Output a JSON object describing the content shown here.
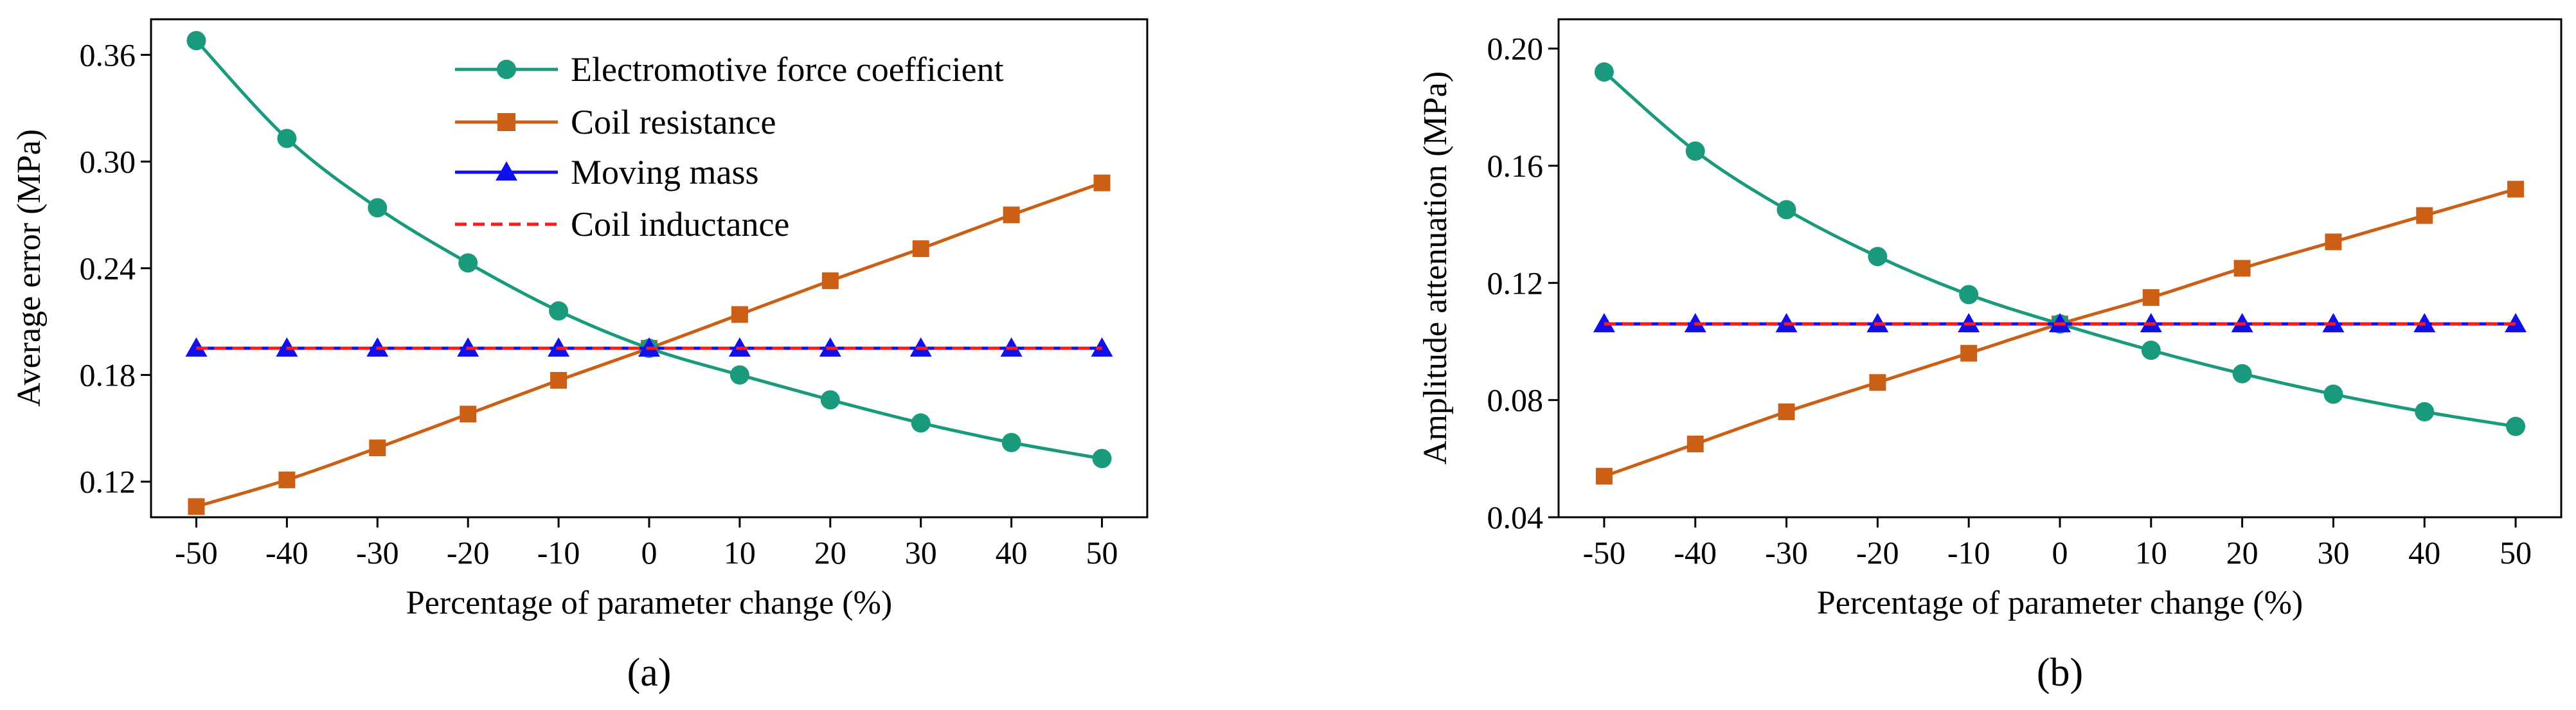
{
  "figure": {
    "panel_labels": [
      "(a)",
      "(b)"
    ]
  },
  "chart_data": [
    {
      "type": "line",
      "panel": "(a)",
      "xlabel": "Percentage of parameter change (%)",
      "ylabel": "Average error (MPa)",
      "xlim": [
        -55,
        55
      ],
      "ylim": [
        0.1,
        0.38
      ],
      "x": [
        -50,
        -40,
        -30,
        -20,
        -10,
        0,
        10,
        20,
        30,
        40,
        50
      ],
      "xticks": [
        -50,
        -40,
        -30,
        -20,
        -10,
        0,
        10,
        20,
        30,
        40,
        50
      ],
      "yticks": [
        0.12,
        0.18,
        0.24,
        0.3,
        0.36
      ],
      "ytick_labels": [
        "0.12",
        "0.18",
        "0.24",
        "0.30",
        "0.36"
      ],
      "grid": false,
      "legend_position": "top-right",
      "series": [
        {
          "name": "Electromotive force coefficient",
          "color": "#1a9a7c",
          "marker": "circle",
          "dash": "solid",
          "values": [
            0.368,
            0.313,
            0.274,
            0.243,
            0.216,
            0.195,
            0.18,
            0.166,
            0.153,
            0.142,
            0.133
          ]
        },
        {
          "name": "Coil resistance",
          "color": "#cc5f16",
          "marker": "square",
          "dash": "solid",
          "values": [
            0.106,
            0.121,
            0.139,
            0.158,
            0.177,
            0.195,
            0.214,
            0.233,
            0.251,
            0.27,
            0.288
          ]
        },
        {
          "name": "Moving mass",
          "color": "#1010ee",
          "marker": "triangle",
          "dash": "solid",
          "values": [
            0.195,
            0.195,
            0.195,
            0.195,
            0.195,
            0.195,
            0.195,
            0.195,
            0.195,
            0.195,
            0.195
          ]
        },
        {
          "name": "Coil inductance",
          "color": "#ff1a1a",
          "marker": "none",
          "dash": "dashed",
          "values": [
            0.195,
            0.195,
            0.195,
            0.195,
            0.195,
            0.195,
            0.195,
            0.195,
            0.195,
            0.195,
            0.195
          ]
        }
      ]
    },
    {
      "type": "line",
      "panel": "(b)",
      "xlabel": "Percentage of parameter change (%)",
      "ylabel": "Amplitude attenuation (MPa)",
      "xlim": [
        -55,
        55
      ],
      "ylim": [
        0.04,
        0.21
      ],
      "x": [
        -50,
        -40,
        -30,
        -20,
        -10,
        0,
        10,
        20,
        30,
        40,
        50
      ],
      "xticks": [
        -50,
        -40,
        -30,
        -20,
        -10,
        0,
        10,
        20,
        30,
        40,
        50
      ],
      "yticks": [
        0.04,
        0.08,
        0.12,
        0.16,
        0.2
      ],
      "ytick_labels": [
        "0.04",
        "0.08",
        "0.12",
        "0.16",
        "0.20"
      ],
      "grid": false,
      "legend_position": "none",
      "series": [
        {
          "name": "Electromotive force coefficient",
          "color": "#1a9a7c",
          "marker": "circle",
          "dash": "solid",
          "values": [
            0.192,
            0.165,
            0.145,
            0.129,
            0.116,
            0.106,
            0.097,
            0.089,
            0.082,
            0.076,
            0.071
          ]
        },
        {
          "name": "Coil resistance",
          "color": "#cc5f16",
          "marker": "square",
          "dash": "solid",
          "values": [
            0.054,
            0.065,
            0.076,
            0.086,
            0.096,
            0.106,
            0.115,
            0.125,
            0.134,
            0.143,
            0.152
          ]
        },
        {
          "name": "Moving mass",
          "color": "#1010ee",
          "marker": "triangle",
          "dash": "solid",
          "values": [
            0.106,
            0.106,
            0.106,
            0.106,
            0.106,
            0.106,
            0.106,
            0.106,
            0.106,
            0.106,
            0.106
          ]
        },
        {
          "name": "Coil inductance",
          "color": "#ff1a1a",
          "marker": "none",
          "dash": "dashed",
          "values": [
            0.106,
            0.106,
            0.106,
            0.106,
            0.106,
            0.106,
            0.106,
            0.106,
            0.106,
            0.106,
            0.106
          ]
        }
      ]
    }
  ]
}
